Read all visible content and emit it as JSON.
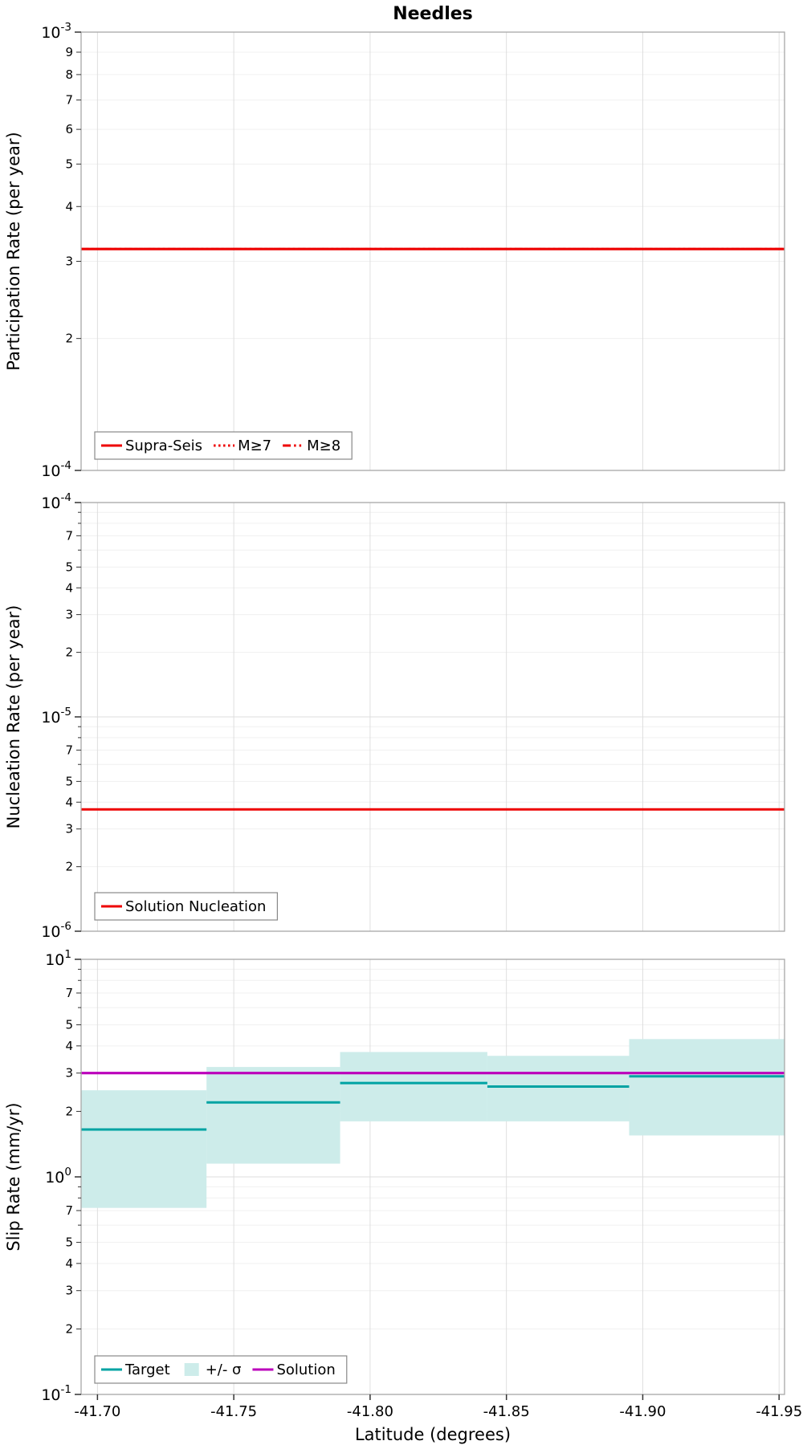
{
  "figure_title": "Needles",
  "colors": {
    "red": "#EE0000",
    "teal": "#00A3A3",
    "band": "#CDECEA",
    "magenta": "#BB00BB",
    "grid_major": "#DEDEDE",
    "grid_minor": "#F0F0F0",
    "frame": "#A8A8A8",
    "tick": "#333333",
    "text": "#000000",
    "legend_border": "#888888"
  },
  "x_axis": {
    "label": "Latitude (degrees)",
    "ticks": [
      -41.7,
      -41.75,
      -41.8,
      -41.85,
      -41.9,
      -41.95
    ],
    "tick_labels": [
      "-41.70",
      "-41.75",
      "-41.80",
      "-41.85",
      "-41.90",
      "-41.95"
    ],
    "range": [
      -41.694,
      -41.952
    ]
  },
  "chart_data": [
    {
      "type": "line",
      "name": "participation-rate-panel",
      "title": "Needles",
      "ylabel": "Participation Rate (per year)",
      "yscale": "log",
      "ylim": [
        0.0001,
        0.001
      ],
      "minor_tick_labels": [
        9,
        8,
        7,
        6,
        5,
        4,
        3,
        2
      ],
      "grid": true,
      "legend_position": "lower-left",
      "series": [
        {
          "name": "Supra-Seis",
          "color": "red",
          "dash": "solid",
          "width": 3.2,
          "value": 0.00032
        },
        {
          "name": "M≥7",
          "color": "red",
          "dash": "dotted",
          "width": 2.6,
          "value": 0.00032
        },
        {
          "name": "M≥8",
          "color": "red",
          "dash": "dashdot",
          "width": 2.6,
          "value": 0.00032
        }
      ],
      "legend": [
        {
          "label": "Supra-Seis",
          "swatch": "line",
          "dash": "solid",
          "color": "red"
        },
        {
          "label": "M≥7",
          "swatch": "line",
          "dash": "dotted",
          "color": "red"
        },
        {
          "label": "M≥8",
          "swatch": "line",
          "dash": "dashdot",
          "color": "red"
        }
      ]
    },
    {
      "type": "line",
      "name": "nucleation-rate-panel",
      "ylabel": "Nucleation Rate (per year)",
      "yscale": "log",
      "ylim": [
        1e-06,
        0.0001
      ],
      "minor_tick_labels": [
        7,
        5,
        4,
        3,
        2
      ],
      "grid": true,
      "legend_position": "lower-left",
      "series": [
        {
          "name": "Solution Nucleation",
          "color": "red",
          "dash": "solid",
          "width": 3.0,
          "value": 3.7e-06
        }
      ],
      "legend": [
        {
          "label": "Solution Nucleation",
          "swatch": "line",
          "dash": "solid",
          "color": "red"
        }
      ]
    },
    {
      "type": "step",
      "name": "slip-rate-panel",
      "ylabel": "Slip Rate (mm/yr)",
      "xlabel": "Latitude (degrees)",
      "yscale": "log",
      "ylim": [
        0.1,
        10
      ],
      "minor_tick_labels": [
        7,
        5,
        4,
        3,
        2
      ],
      "grid": true,
      "legend_position": "lower-left",
      "segments": [
        {
          "lat_start": -41.694,
          "lat_end": -41.74,
          "target": 1.65,
          "sigma_lo": 0.72,
          "sigma_hi": 2.5,
          "solution": 3.0
        },
        {
          "lat_start": -41.74,
          "lat_end": -41.789,
          "target": 2.2,
          "sigma_lo": 1.15,
          "sigma_hi": 3.2,
          "solution": 3.0
        },
        {
          "lat_start": -41.789,
          "lat_end": -41.843,
          "target": 2.7,
          "sigma_lo": 1.8,
          "sigma_hi": 3.75,
          "solution": 3.0
        },
        {
          "lat_start": -41.843,
          "lat_end": -41.895,
          "target": 2.6,
          "sigma_lo": 1.8,
          "sigma_hi": 3.6,
          "solution": 3.0
        },
        {
          "lat_start": -41.895,
          "lat_end": -41.952,
          "target": 2.9,
          "sigma_lo": 1.55,
          "sigma_hi": 4.3,
          "solution": 3.0
        }
      ],
      "legend": [
        {
          "label": "Target",
          "swatch": "line",
          "dash": "solid",
          "color": "teal"
        },
        {
          "label": "+/- σ",
          "swatch": "patch",
          "color": "band"
        },
        {
          "label": "Solution",
          "swatch": "line",
          "dash": "solid",
          "color": "magenta"
        }
      ]
    }
  ]
}
